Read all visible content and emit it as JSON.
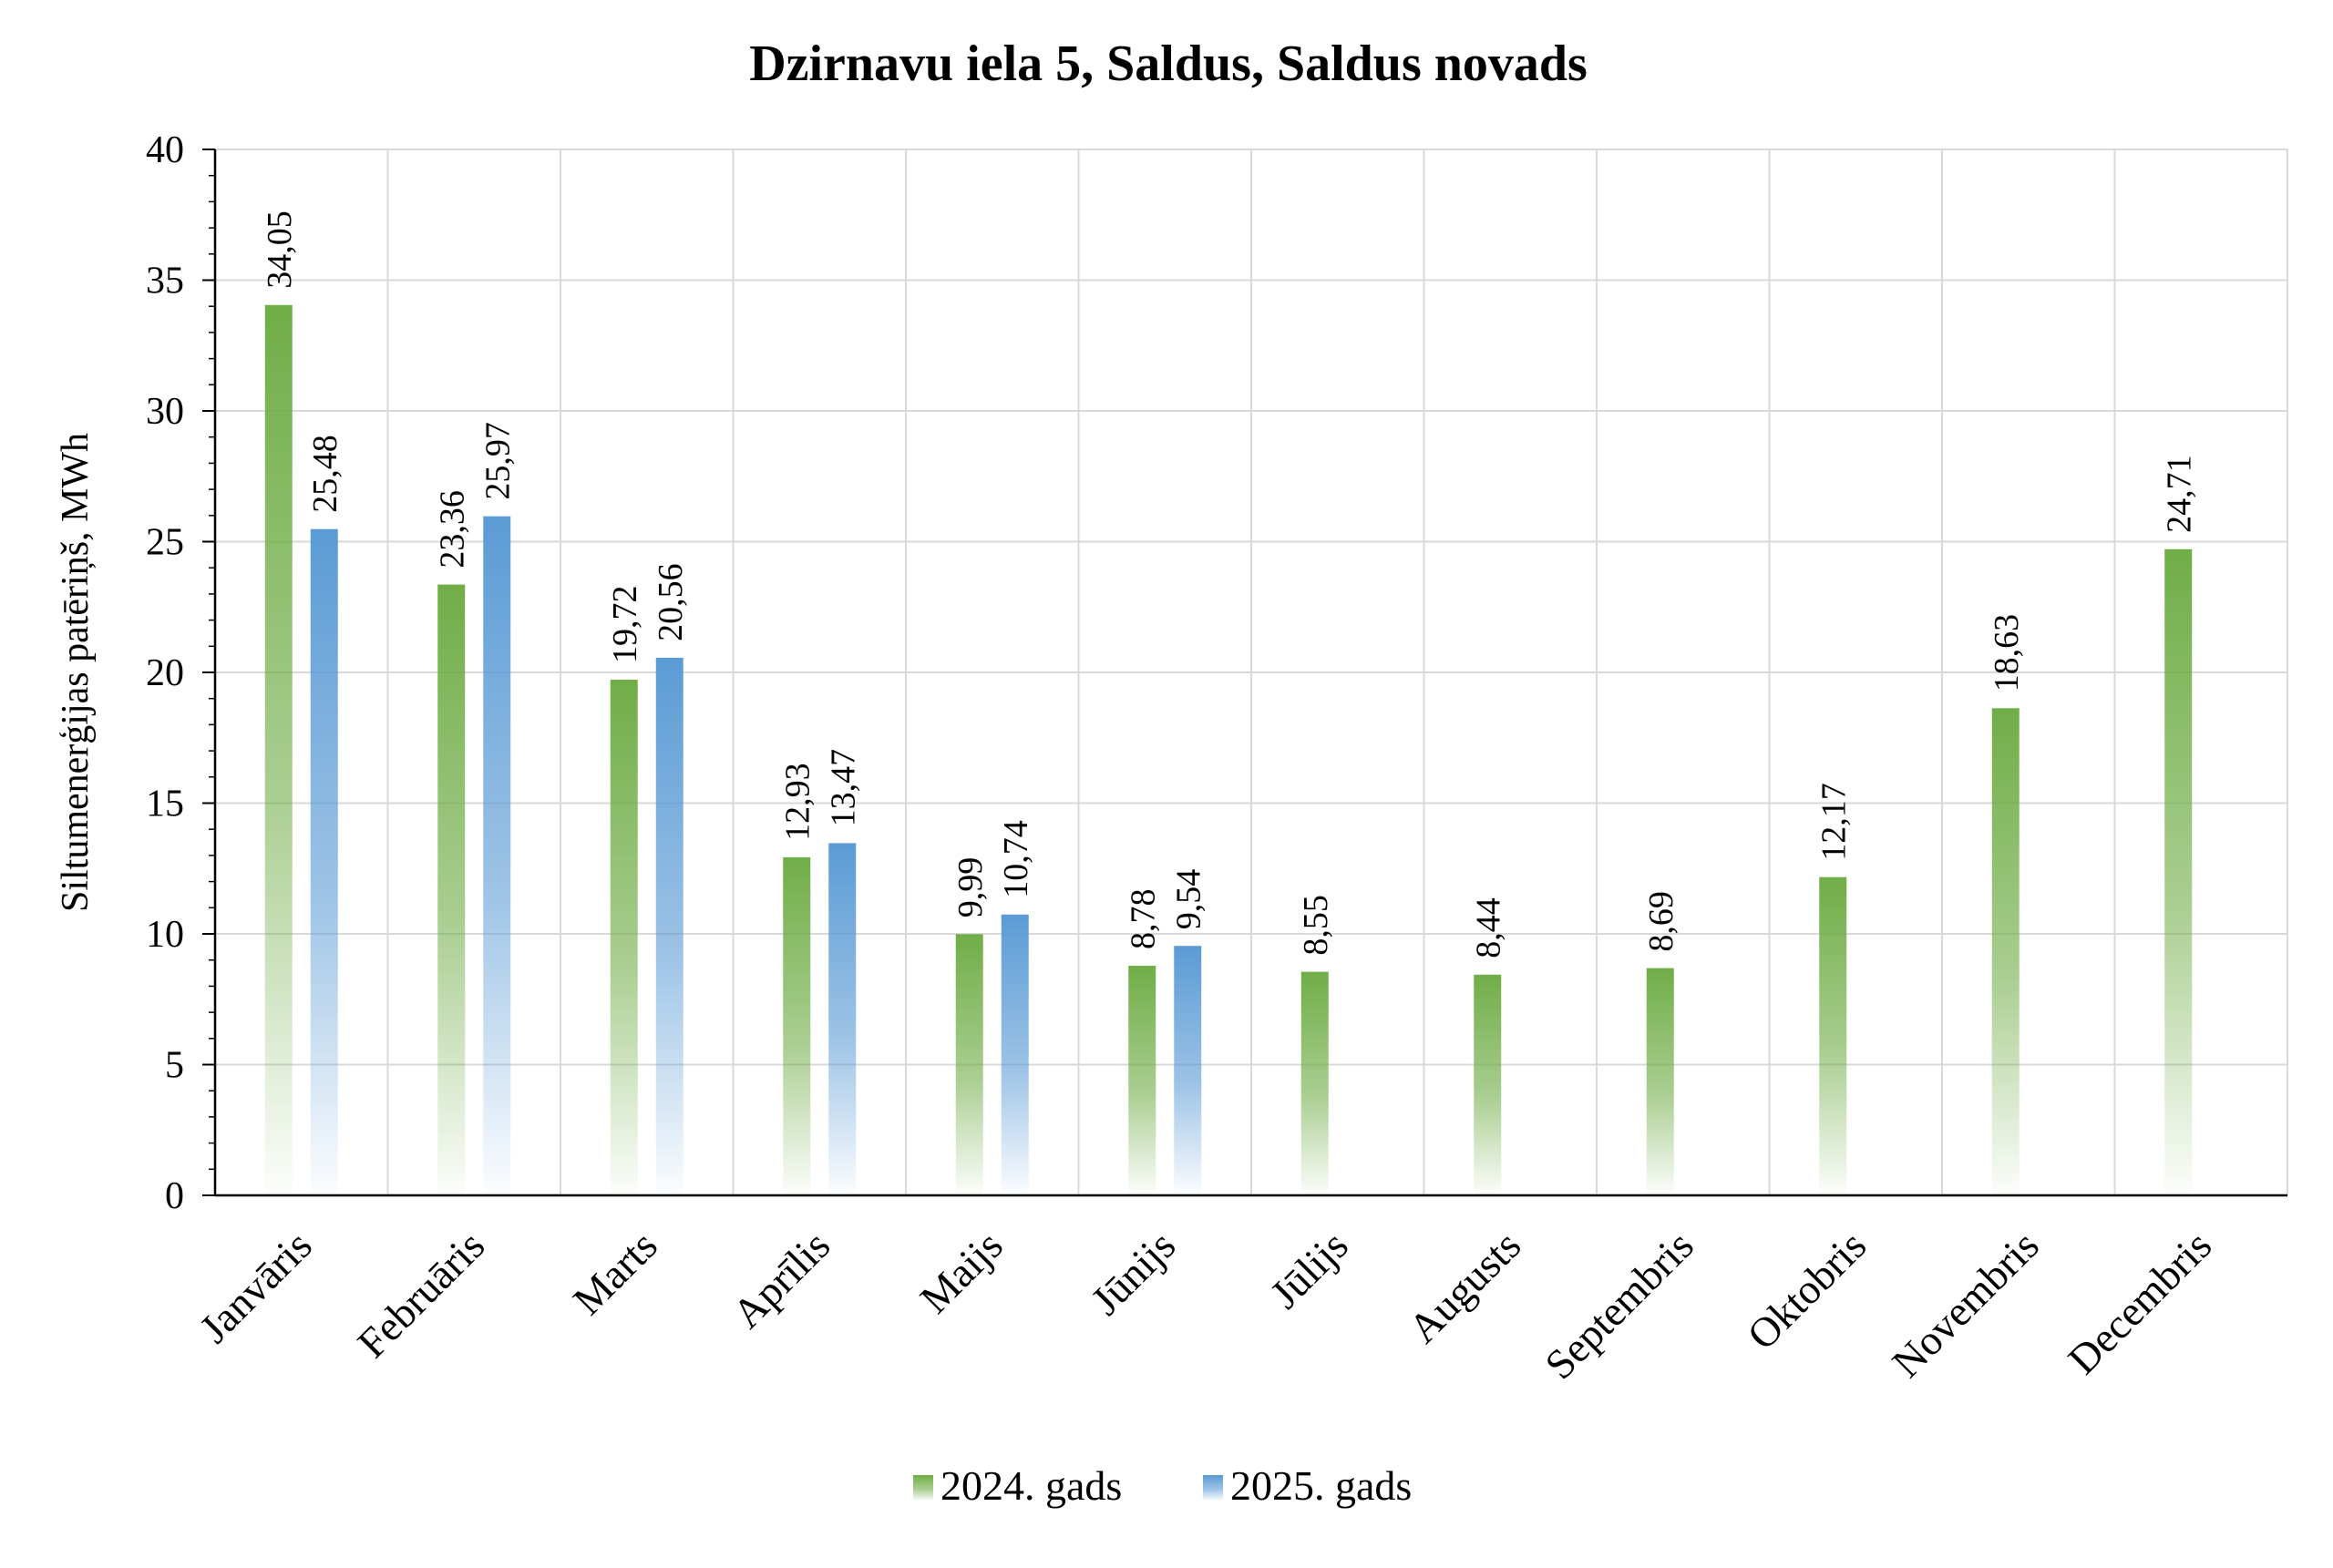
{
  "chart_data": {
    "type": "bar",
    "title": "Dzirnavu iela 5, Saldus, Saldus novads",
    "xlabel": "",
    "ylabel": "Siltumenerģijas patēriņš, MWh",
    "ylim": [
      0,
      40
    ],
    "yticks": [
      0,
      5,
      10,
      15,
      20,
      25,
      30,
      35,
      40
    ],
    "grid": true,
    "legend_position": "bottom",
    "categories": [
      "Janvāris",
      "Februāris",
      "Marts",
      "Aprīlis",
      "Maijs",
      "Jūnijs",
      "Jūlijs",
      "Augusts",
      "Septembris",
      "Oktobris",
      "Novembris",
      "Decembris"
    ],
    "series": [
      {
        "name": "2024. gads",
        "color": "#70ad47",
        "values": [
          34.05,
          23.36,
          19.72,
          12.93,
          9.99,
          8.78,
          8.55,
          8.44,
          8.69,
          12.17,
          18.63,
          24.71
        ],
        "labels": [
          "34,05",
          "23,36",
          "19,72",
          "12,93",
          "9,99",
          "8,78",
          "8,55",
          "8,44",
          "8,69",
          "12,17",
          "18,63",
          "24,71"
        ]
      },
      {
        "name": "2025. gads",
        "color": "#5b9bd5",
        "values": [
          25.48,
          25.97,
          20.56,
          13.47,
          10.74,
          9.54,
          null,
          null,
          null,
          null,
          null,
          null
        ],
        "labels": [
          "25,48",
          "25,97",
          "20,56",
          "13,47",
          "10,74",
          "9,54",
          null,
          null,
          null,
          null,
          null,
          null
        ]
      }
    ]
  }
}
